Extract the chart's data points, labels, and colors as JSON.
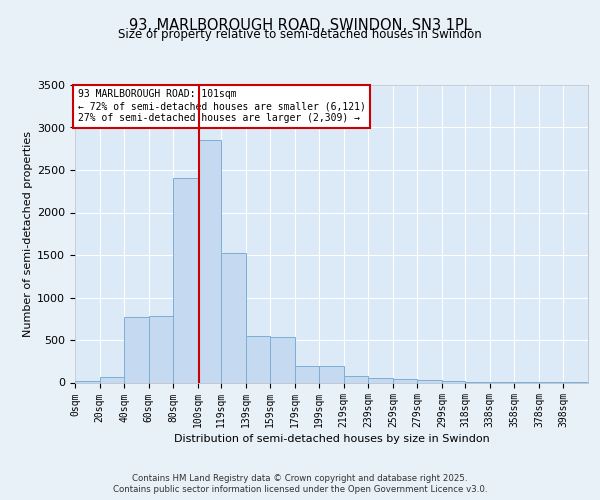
{
  "title_line1": "93, MARLBOROUGH ROAD, SWINDON, SN3 1PL",
  "title_line2": "Size of property relative to semi-detached houses in Swindon",
  "xlabel": "Distribution of semi-detached houses by size in Swindon",
  "ylabel": "Number of semi-detached properties",
  "annotation_line1": "93 MARLBOROUGH ROAD: 101sqm",
  "annotation_line2": "← 72% of semi-detached houses are smaller (6,121)",
  "annotation_line3": "27% of semi-detached houses are larger (2,309) →",
  "bin_labels": [
    "0sqm",
    "20sqm",
    "40sqm",
    "60sqm",
    "80sqm",
    "100sqm",
    "119sqm",
    "139sqm",
    "159sqm",
    "179sqm",
    "199sqm",
    "219sqm",
    "239sqm",
    "259sqm",
    "279sqm",
    "299sqm",
    "318sqm",
    "338sqm",
    "358sqm",
    "378sqm",
    "398sqm"
  ],
  "bin_edges": [
    0,
    20,
    40,
    60,
    80,
    100,
    119,
    139,
    159,
    179,
    199,
    219,
    239,
    259,
    279,
    299,
    318,
    338,
    358,
    378,
    398,
    418
  ],
  "bar_heights": [
    20,
    60,
    770,
    780,
    2400,
    2850,
    1520,
    545,
    540,
    195,
    190,
    80,
    55,
    38,
    25,
    15,
    10,
    5,
    5,
    3,
    2
  ],
  "bar_color": "#c5d9f0",
  "bar_edge_color": "#7bafd4",
  "vline_color": "#cc0000",
  "vline_x": 101,
  "ylim": [
    0,
    3500
  ],
  "background_color": "#dce9f7",
  "grid_color": "#ffffff",
  "fig_background": "#e8f0f8",
  "footer_line1": "Contains HM Land Registry data © Crown copyright and database right 2025.",
  "footer_line2": "Contains public sector information licensed under the Open Government Licence v3.0."
}
